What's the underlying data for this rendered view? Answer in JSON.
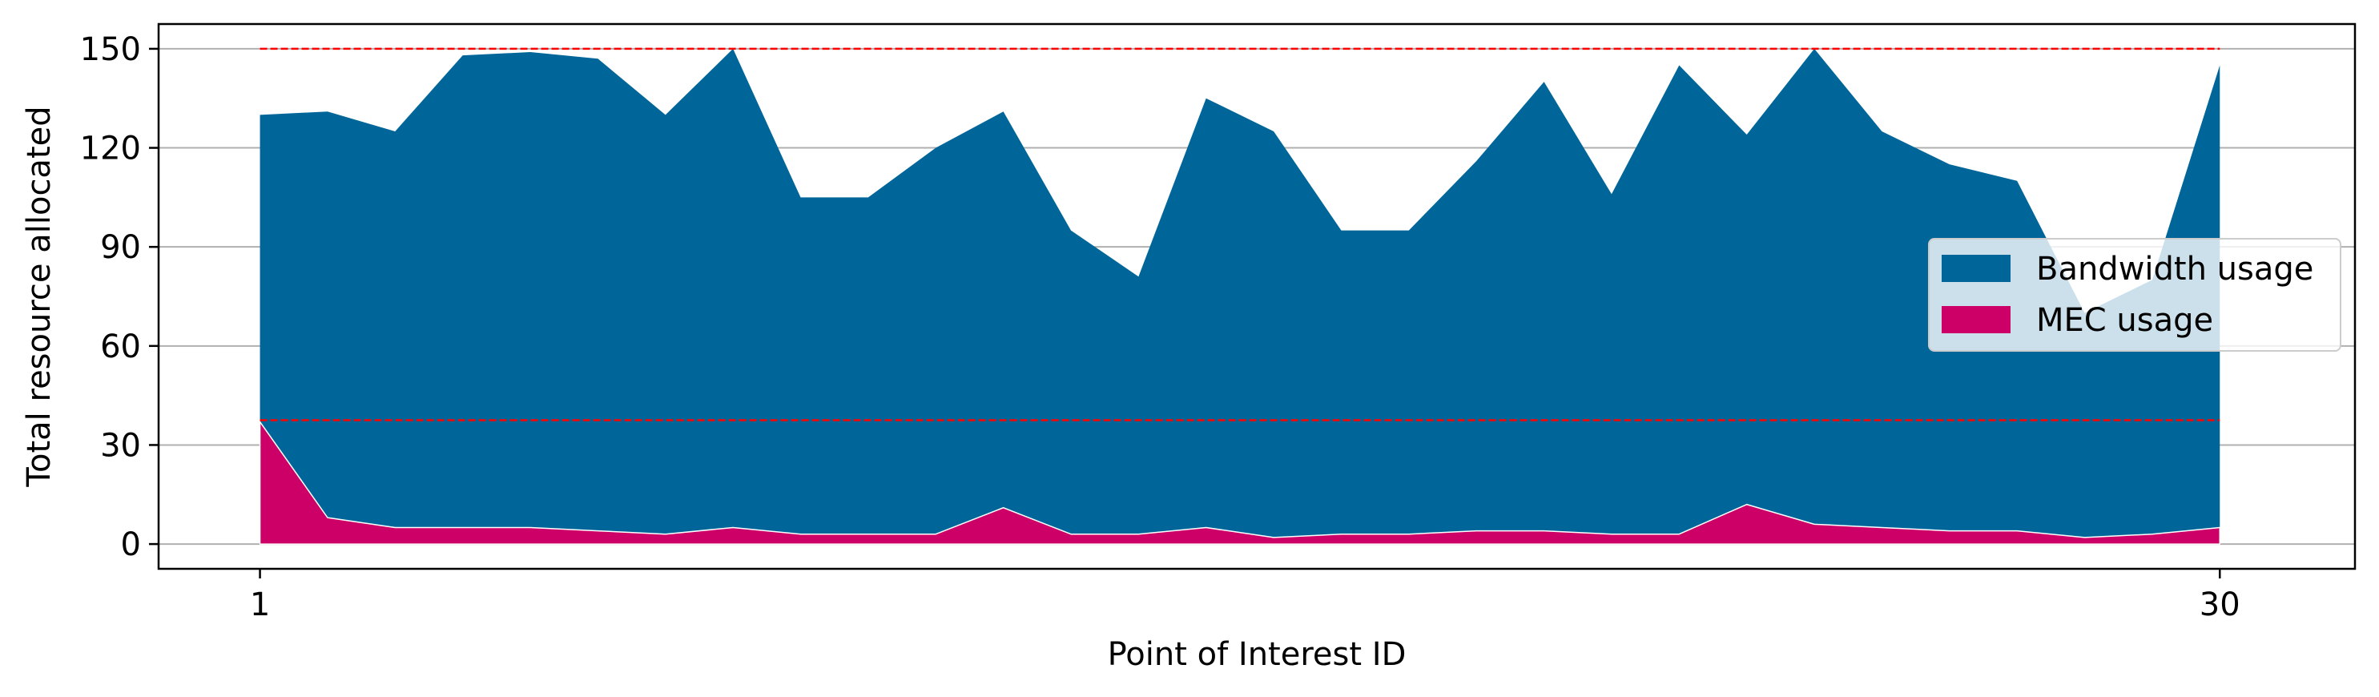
{
  "chart_data": {
    "type": "area",
    "stacked": false,
    "x": [
      1,
      2,
      3,
      4,
      5,
      6,
      7,
      8,
      9,
      10,
      11,
      12,
      13,
      14,
      15,
      16,
      17,
      18,
      19,
      20,
      21,
      22,
      23,
      24,
      25,
      26,
      27,
      28,
      29,
      30
    ],
    "series": [
      {
        "name": "Bandwidth usage",
        "color": "#006699",
        "values": [
          130,
          131,
          125,
          148,
          149,
          147,
          130,
          150,
          105,
          105,
          120,
          131,
          95,
          81,
          135,
          125,
          95,
          95,
          116,
          140,
          106,
          145,
          124,
          150,
          125,
          115,
          110,
          70,
          80,
          145
        ]
      },
      {
        "name": "MEC usage",
        "color": "#cc0066",
        "values": [
          37,
          8,
          5,
          5,
          5,
          4,
          3,
          5,
          3,
          3,
          3,
          11,
          3,
          3,
          5,
          2,
          3,
          3,
          4,
          4,
          3,
          3,
          12,
          6,
          5,
          4,
          4,
          2,
          3,
          5
        ]
      }
    ],
    "reference_lines": [
      {
        "y": 150,
        "color": "#ff0000",
        "style": "dashed"
      },
      {
        "y": 37.5,
        "color": "#ff0000",
        "style": "dashed"
      }
    ],
    "xlabel": "Point of Interest ID",
    "ylabel": "Total resource allocated",
    "x_ticks": [
      1,
      30
    ],
    "y_ticks": [
      0,
      30,
      60,
      90,
      120,
      150
    ],
    "xlim": [
      -0.5,
      32
    ],
    "ylim": [
      -7.5,
      157.5
    ],
    "grid": "horizontal",
    "legend_position": "center-right"
  }
}
